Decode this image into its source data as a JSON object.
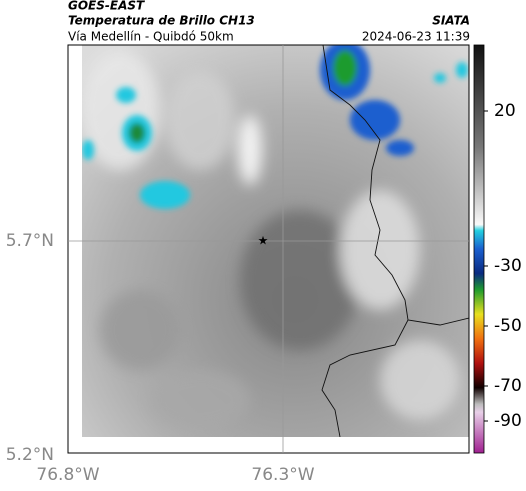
{
  "header": {
    "source": "GOES-EAST",
    "title": "Temperatura de Brillo CH13",
    "subtitle": "Vía Medellín - Quibdó 50km",
    "organization": "SIATA",
    "timestamp": "2024-06-23 11:39"
  },
  "axes": {
    "lat_labels": [
      "5.7°N",
      "5.2°N"
    ],
    "lon_labels": [
      "76.8°W",
      "76.3°W"
    ]
  },
  "colorbar": {
    "labels": [
      20,
      -30,
      -50,
      -70,
      -90
    ]
  }
}
